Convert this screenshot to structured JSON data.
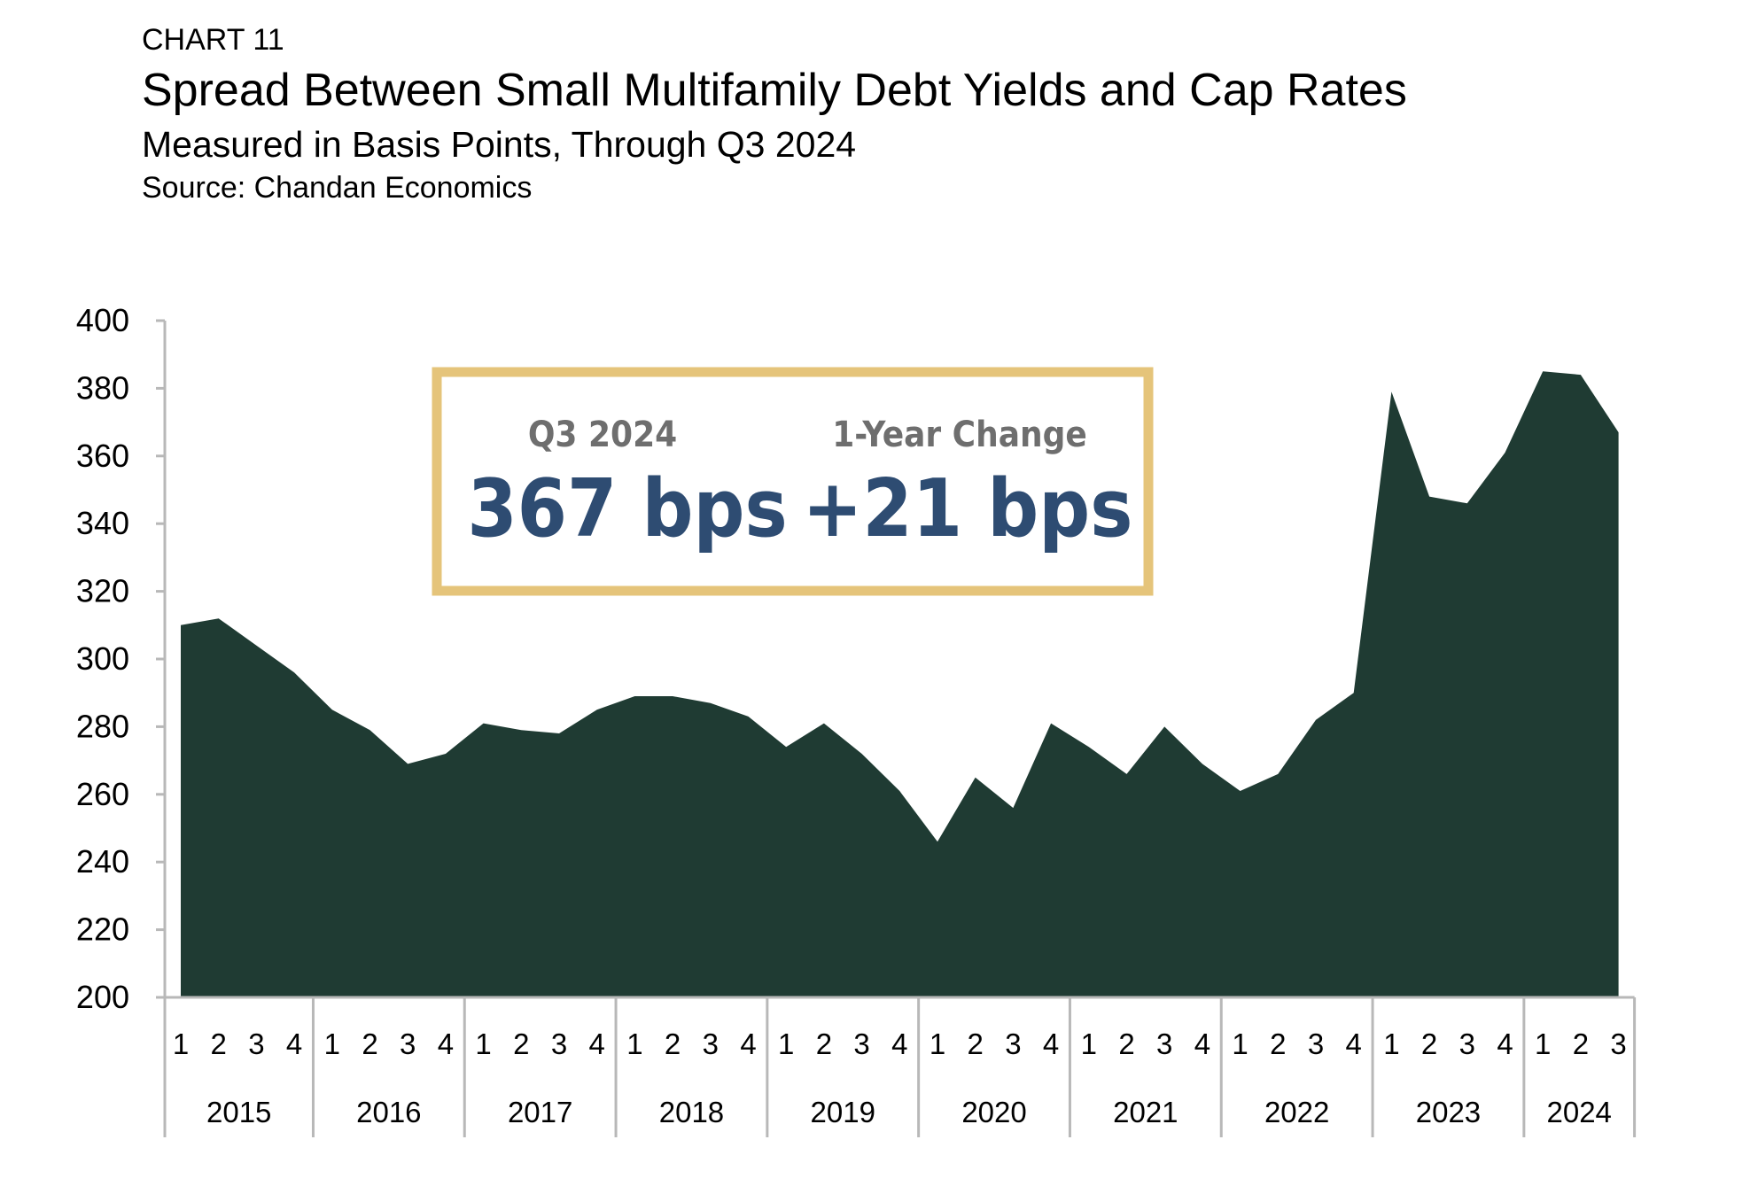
{
  "header": {
    "chart_label": "CHART 11",
    "title": "Spread Between Small Multifamily Debt Yields and Cap Rates",
    "subtitle": "Measured in Basis Points, Through Q3 2024",
    "source": "Source: Chandan Economics"
  },
  "callout": {
    "current_label": "Q3 2024",
    "current_value": "367 bps",
    "change_label": "1-Year Change",
    "change_value": "+21 bps"
  },
  "colors": {
    "area": "#1f3b33",
    "callout_border": "#e5c47a",
    "callout_label": "#6e6e6e",
    "callout_value": "#2e4c72",
    "axis": "#b8b8b8"
  },
  "chart_data": {
    "type": "area",
    "title": "Spread Between Small Multifamily Debt Yields and Cap Rates",
    "ylabel": "",
    "xlabel": "",
    "ylim": [
      200,
      400
    ],
    "yticks": [
      200,
      220,
      240,
      260,
      280,
      300,
      320,
      340,
      360,
      380,
      400
    ],
    "years": [
      {
        "label": "2015",
        "quarters": [
          "1",
          "2",
          "3",
          "4"
        ]
      },
      {
        "label": "2016",
        "quarters": [
          "1",
          "2",
          "3",
          "4"
        ]
      },
      {
        "label": "2017",
        "quarters": [
          "1",
          "2",
          "3",
          "4"
        ]
      },
      {
        "label": "2018",
        "quarters": [
          "1",
          "2",
          "3",
          "4"
        ]
      },
      {
        "label": "2019",
        "quarters": [
          "1",
          "2",
          "3",
          "4"
        ]
      },
      {
        "label": "2020",
        "quarters": [
          "1",
          "2",
          "3",
          "4"
        ]
      },
      {
        "label": "2021",
        "quarters": [
          "1",
          "2",
          "3",
          "4"
        ]
      },
      {
        "label": "2022",
        "quarters": [
          "1",
          "2",
          "3",
          "4"
        ]
      },
      {
        "label": "2023",
        "quarters": [
          "1",
          "2",
          "3",
          "4"
        ]
      },
      {
        "label": "2024",
        "quarters": [
          "1",
          "2",
          "3"
        ]
      }
    ],
    "series": [
      {
        "name": "Spread (bps)",
        "values": [
          310,
          312,
          304,
          296,
          285,
          279,
          269,
          272,
          281,
          279,
          278,
          285,
          289,
          289,
          287,
          283,
          274,
          281,
          272,
          261,
          246,
          265,
          256,
          281,
          274,
          266,
          280,
          269,
          261,
          266,
          282,
          290,
          379,
          348,
          346,
          361,
          385,
          384,
          367
        ]
      }
    ]
  }
}
